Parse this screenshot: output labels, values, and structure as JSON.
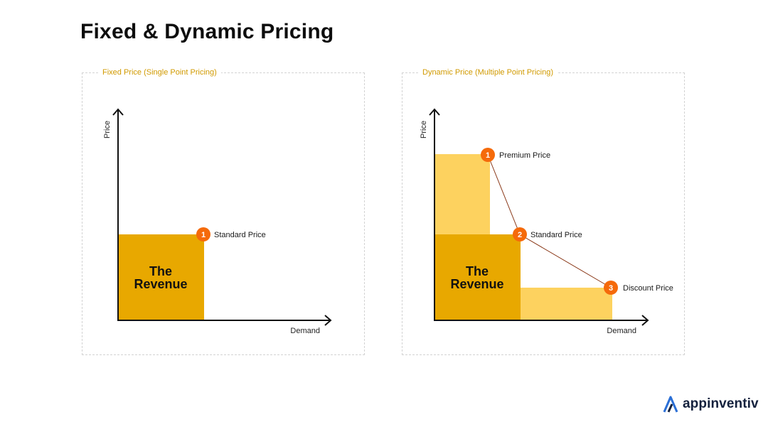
{
  "title": "Fixed & Dynamic Pricing",
  "fixed": {
    "legend": "Fixed Price (Single Point Pricing)",
    "y_axis": "Price",
    "x_axis": "Demand",
    "revenue_line1": "The",
    "revenue_line2": "Revenue",
    "points": [
      {
        "number": "1",
        "label": "Standard Price"
      }
    ]
  },
  "dynamic": {
    "legend": "Dynamic Price (Multiple Point Pricing)",
    "y_axis": "Price",
    "x_axis": "Demand",
    "revenue_line1": "The",
    "revenue_line2": "Revenue",
    "points": [
      {
        "number": "1",
        "label": "Premium Price"
      },
      {
        "number": "2",
        "label": "Standard Price"
      },
      {
        "number": "3",
        "label": "Discount Price"
      }
    ]
  },
  "logo": {
    "text": "appinventiv",
    "icon": "appinventiv-logo-icon"
  },
  "colors": {
    "revenue_dark": "#E8A800",
    "revenue_light": "#FDD25F",
    "badge": "#F56A0A",
    "legend": "#D19A00",
    "connector": "#8B3A1A"
  }
}
